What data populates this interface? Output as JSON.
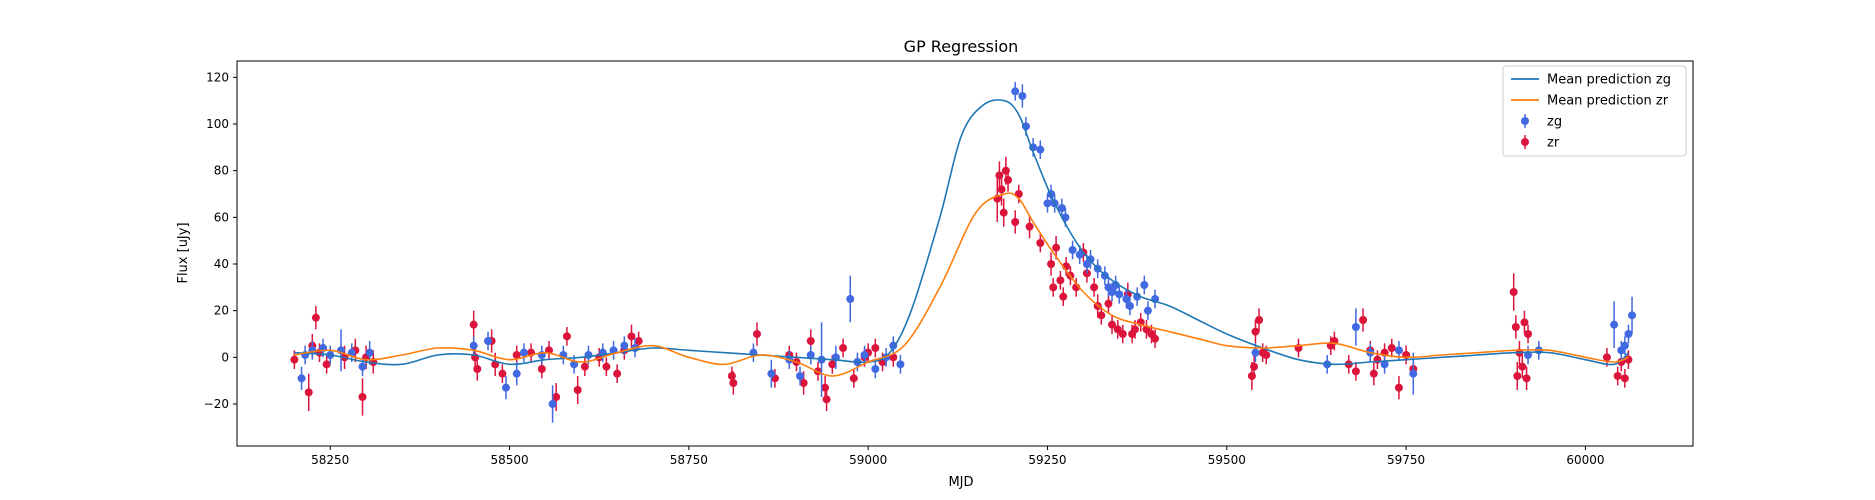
{
  "chart_data": {
    "type": "scatter",
    "title": "GP Regression",
    "xlabel": "MJD",
    "ylabel": "Flux [uJy]",
    "xlim": [
      58120,
      60150
    ],
    "ylim": [
      -38,
      127
    ],
    "xticks": [
      58250,
      58500,
      58750,
      59000,
      59250,
      59500,
      59750,
      60000
    ],
    "yticks": [
      -20,
      0,
      20,
      40,
      60,
      80,
      100,
      120
    ],
    "grid": false,
    "legend_position": "top-right",
    "series": [
      {
        "name": "Mean prediction zg",
        "kind": "line",
        "color": "#1f77b4",
        "x": [
          58200,
          58250,
          58300,
          58350,
          58400,
          58450,
          58500,
          58550,
          58600,
          58650,
          58700,
          58750,
          58800,
          58850,
          58900,
          58950,
          59000,
          59030,
          59060,
          59100,
          59130,
          59160,
          59190,
          59210,
          59230,
          59260,
          59300,
          59340,
          59380,
          59420,
          59460,
          59500,
          59550,
          59600,
          59650,
          59700,
          59750,
          59800,
          59850,
          59900,
          59950,
          60000,
          60040,
          60060
        ],
        "y": [
          2,
          1,
          -2,
          -3,
          1,
          1,
          -3,
          -1,
          0,
          2,
          4,
          3,
          2,
          1,
          0,
          -1,
          -2,
          2,
          20,
          60,
          95,
          108,
          110,
          104,
          88,
          66,
          45,
          33,
          26,
          22,
          16,
          10,
          4,
          -1,
          -3,
          -2,
          -1,
          0,
          1,
          2,
          2,
          -1,
          -3,
          2
        ]
      },
      {
        "name": "Mean prediction zr",
        "kind": "line",
        "color": "#ff7f0e",
        "x": [
          58200,
          58250,
          58300,
          58350,
          58400,
          58450,
          58500,
          58550,
          58600,
          58650,
          58700,
          58750,
          58800,
          58850,
          58900,
          58950,
          59000,
          59050,
          59100,
          59150,
          59190,
          59210,
          59230,
          59260,
          59300,
          59340,
          59380,
          59420,
          59460,
          59500,
          59550,
          59600,
          59650,
          59700,
          59750,
          59800,
          59850,
          59900,
          59950,
          60000,
          60040,
          60060
        ],
        "y": [
          1,
          3,
          -1,
          1,
          4,
          3,
          -1,
          2,
          -2,
          2,
          5,
          0,
          -3,
          1,
          -2,
          -8,
          -2,
          5,
          30,
          62,
          70,
          68,
          58,
          44,
          28,
          18,
          14,
          11,
          8,
          5,
          4,
          5,
          6,
          2,
          0,
          1,
          2,
          3,
          3,
          0,
          -2,
          0
        ]
      },
      {
        "name": "zg",
        "kind": "errorbar",
        "color": "#4169e1",
        "points": [
          [
            58210,
            -9,
            5
          ],
          [
            58215,
            1,
            4
          ],
          [
            58225,
            3,
            4
          ],
          [
            58240,
            4,
            4
          ],
          [
            58250,
            1,
            4
          ],
          [
            58265,
            3,
            9
          ],
          [
            58280,
            2,
            4
          ],
          [
            58295,
            -4,
            4
          ],
          [
            58305,
            2,
            5
          ],
          [
            58450,
            5,
            4
          ],
          [
            58470,
            7,
            4
          ],
          [
            58495,
            -13,
            5
          ],
          [
            58510,
            -7,
            5
          ],
          [
            58520,
            2,
            4
          ],
          [
            58545,
            1,
            4
          ],
          [
            58560,
            -20,
            8
          ],
          [
            58575,
            1,
            4
          ],
          [
            58590,
            -3,
            4
          ],
          [
            58610,
            1,
            4
          ],
          [
            58630,
            2,
            4
          ],
          [
            58645,
            3,
            4
          ],
          [
            58660,
            5,
            4
          ],
          [
            58675,
            4,
            4
          ],
          [
            58840,
            2,
            4
          ],
          [
            58865,
            -7,
            6
          ],
          [
            58890,
            -1,
            4
          ],
          [
            58905,
            -8,
            4
          ],
          [
            58920,
            1,
            4
          ],
          [
            58935,
            -1,
            16
          ],
          [
            58955,
            0,
            5
          ],
          [
            58975,
            25,
            10
          ],
          [
            58985,
            -2,
            4
          ],
          [
            58995,
            1,
            4
          ],
          [
            59010,
            -5,
            4
          ],
          [
            59025,
            0,
            4
          ],
          [
            59035,
            5,
            4
          ],
          [
            59045,
            -3,
            4
          ],
          [
            59205,
            114,
            4
          ],
          [
            59215,
            112,
            5
          ],
          [
            59220,
            99,
            4
          ],
          [
            59230,
            90,
            4
          ],
          [
            59240,
            89,
            4
          ],
          [
            59250,
            66,
            4
          ],
          [
            59255,
            70,
            4
          ],
          [
            59260,
            66,
            4
          ],
          [
            59270,
            64,
            4
          ],
          [
            59275,
            60,
            4
          ],
          [
            59285,
            46,
            4
          ],
          [
            59295,
            44,
            4
          ],
          [
            59305,
            40,
            4
          ],
          [
            59310,
            42,
            4
          ],
          [
            59320,
            38,
            4
          ],
          [
            59330,
            35,
            4
          ],
          [
            59335,
            30,
            4
          ],
          [
            59340,
            28,
            4
          ],
          [
            59345,
            31,
            4
          ],
          [
            59350,
            27,
            4
          ],
          [
            59360,
            25,
            4
          ],
          [
            59365,
            22,
            4
          ],
          [
            59375,
            26,
            4
          ],
          [
            59385,
            31,
            4
          ],
          [
            59390,
            20,
            4
          ],
          [
            59400,
            25,
            4
          ],
          [
            59540,
            2,
            4
          ],
          [
            59640,
            -3,
            4
          ],
          [
            59680,
            13,
            8
          ],
          [
            59700,
            2,
            4
          ],
          [
            59720,
            -3,
            4
          ],
          [
            59740,
            3,
            4
          ],
          [
            59760,
            -7,
            9
          ],
          [
            59920,
            1,
            4
          ],
          [
            59935,
            3,
            4
          ],
          [
            60040,
            14,
            10
          ],
          [
            60050,
            3,
            4
          ],
          [
            60055,
            5,
            4
          ],
          [
            60060,
            10,
            4
          ],
          [
            60065,
            18,
            8
          ]
        ]
      },
      {
        "name": "zr",
        "kind": "errorbar",
        "color": "#dc143c",
        "points": [
          [
            58200,
            -1,
            4
          ],
          [
            58220,
            -15,
            8
          ],
          [
            58225,
            5,
            5
          ],
          [
            58230,
            17,
            5
          ],
          [
            58235,
            2,
            4
          ],
          [
            58245,
            -3,
            4
          ],
          [
            58270,
            0,
            5
          ],
          [
            58285,
            3,
            5
          ],
          [
            58295,
            -17,
            8
          ],
          [
            58300,
            0,
            5
          ],
          [
            58310,
            -2,
            5
          ],
          [
            58450,
            14,
            6
          ],
          [
            58452,
            0,
            5
          ],
          [
            58455,
            -5,
            5
          ],
          [
            58475,
            7,
            5
          ],
          [
            58480,
            -3,
            5
          ],
          [
            58490,
            -7,
            4
          ],
          [
            58510,
            1,
            4
          ],
          [
            58530,
            2,
            4
          ],
          [
            58545,
            -5,
            4
          ],
          [
            58555,
            3,
            4
          ],
          [
            58565,
            -17,
            6
          ],
          [
            58580,
            9,
            4
          ],
          [
            58595,
            -14,
            6
          ],
          [
            58605,
            -4,
            4
          ],
          [
            58625,
            0,
            4
          ],
          [
            58635,
            -4,
            4
          ],
          [
            58650,
            -7,
            4
          ],
          [
            58660,
            3,
            4
          ],
          [
            58670,
            9,
            5
          ],
          [
            58680,
            7,
            4
          ],
          [
            58810,
            -8,
            4
          ],
          [
            58812,
            -11,
            5
          ],
          [
            58845,
            10,
            5
          ],
          [
            58870,
            -9,
            4
          ],
          [
            58890,
            1,
            4
          ],
          [
            58900,
            -2,
            4
          ],
          [
            58910,
            -11,
            5
          ],
          [
            58920,
            7,
            5
          ],
          [
            58930,
            -6,
            4
          ],
          [
            58940,
            -13,
            5
          ],
          [
            58942,
            -18,
            5
          ],
          [
            58950,
            -3,
            4
          ],
          [
            58965,
            4,
            4
          ],
          [
            58980,
            -9,
            4
          ],
          [
            58995,
            0,
            4
          ],
          [
            59000,
            2,
            4
          ],
          [
            59010,
            4,
            4
          ],
          [
            59020,
            -2,
            4
          ],
          [
            59035,
            0,
            4
          ],
          [
            59180,
            68,
            10
          ],
          [
            59183,
            78,
            6
          ],
          [
            59186,
            72,
            7
          ],
          [
            59189,
            62,
            6
          ],
          [
            59192,
            80,
            6
          ],
          [
            59195,
            76,
            5
          ],
          [
            59205,
            58,
            5
          ],
          [
            59210,
            70,
            4
          ],
          [
            59225,
            56,
            5
          ],
          [
            59240,
            49,
            4
          ],
          [
            59255,
            40,
            5
          ],
          [
            59258,
            30,
            4
          ],
          [
            59262,
            47,
            5
          ],
          [
            59268,
            33,
            4
          ],
          [
            59272,
            26,
            4
          ],
          [
            59276,
            39,
            4
          ],
          [
            59282,
            35,
            4
          ],
          [
            59290,
            30,
            4
          ],
          [
            59300,
            45,
            4
          ],
          [
            59305,
            36,
            4
          ],
          [
            59315,
            30,
            4
          ],
          [
            59320,
            22,
            5
          ],
          [
            59325,
            18,
            4
          ],
          [
            59335,
            23,
            4
          ],
          [
            59340,
            14,
            4
          ],
          [
            59348,
            12,
            4
          ],
          [
            59355,
            10,
            4
          ],
          [
            59362,
            27,
            5
          ],
          [
            59368,
            10,
            4
          ],
          [
            59372,
            12,
            4
          ],
          [
            59380,
            15,
            4
          ],
          [
            59388,
            12,
            4
          ],
          [
            59395,
            10,
            4
          ],
          [
            59400,
            8,
            4
          ],
          [
            59535,
            -8,
            6
          ],
          [
            59538,
            -4,
            5
          ],
          [
            59540,
            11,
            5
          ],
          [
            59545,
            16,
            5
          ],
          [
            59550,
            2,
            4
          ],
          [
            59555,
            1,
            4
          ],
          [
            59600,
            4,
            4
          ],
          [
            59645,
            5,
            4
          ],
          [
            59650,
            7,
            4
          ],
          [
            59670,
            -3,
            4
          ],
          [
            59680,
            -6,
            4
          ],
          [
            59690,
            16,
            5
          ],
          [
            59700,
            3,
            4
          ],
          [
            59705,
            -7,
            5
          ],
          [
            59710,
            -1,
            4
          ],
          [
            59720,
            2,
            4
          ],
          [
            59730,
            4,
            4
          ],
          [
            59740,
            -13,
            5
          ],
          [
            59750,
            1,
            4
          ],
          [
            59760,
            -5,
            4
          ],
          [
            59900,
            28,
            8
          ],
          [
            59903,
            13,
            5
          ],
          [
            59905,
            -8,
            6
          ],
          [
            59908,
            2,
            5
          ],
          [
            59912,
            -4,
            5
          ],
          [
            59915,
            15,
            5
          ],
          [
            59918,
            -9,
            5
          ],
          [
            59920,
            10,
            4
          ],
          [
            60030,
            0,
            4
          ],
          [
            60045,
            -8,
            4
          ],
          [
            60050,
            -2,
            4
          ],
          [
            60055,
            -9,
            4
          ],
          [
            60060,
            -1,
            4
          ]
        ]
      }
    ]
  }
}
